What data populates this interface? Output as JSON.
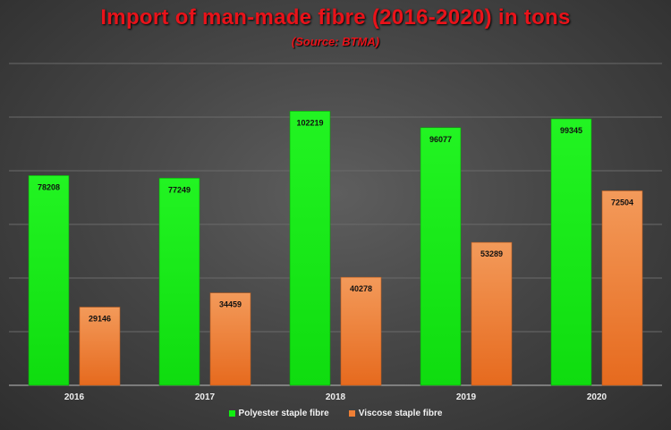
{
  "chart_data": {
    "type": "bar",
    "title": "Import of man-made fibre (2016-2020) in tons",
    "subtitle": "(Source: BTMA)",
    "categories": [
      "2016",
      "2017",
      "2018",
      "2019",
      "2020"
    ],
    "series": [
      {
        "name": "Polyester staple fibre",
        "values": [
          78208,
          77249,
          102219,
          96077,
          99345
        ],
        "color": "#11ee11"
      },
      {
        "name": "Viscose staple fibre",
        "values": [
          29146,
          34459,
          40278,
          53289,
          72504
        ],
        "color": "#ef7f35"
      }
    ],
    "ylim": [
      0,
      120000
    ],
    "grid": true,
    "legend_position": "bottom"
  }
}
